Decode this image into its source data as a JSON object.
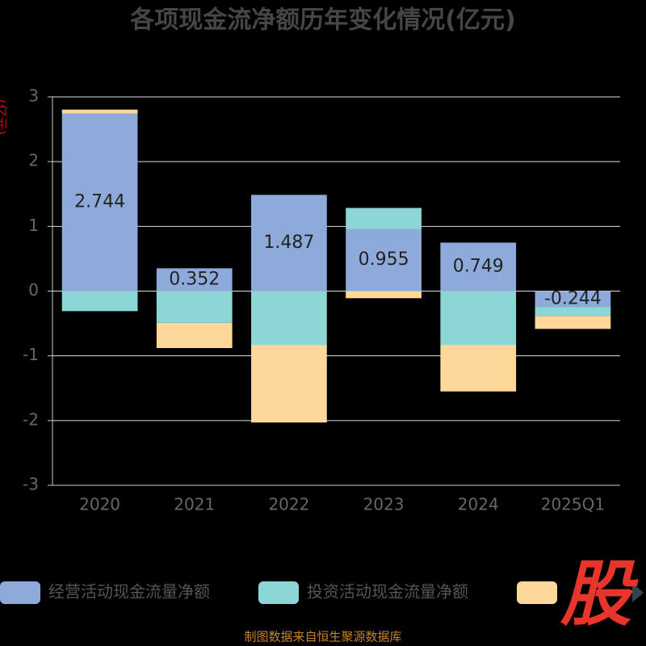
{
  "chart_data": {
    "type": "stacked_bar",
    "title": "各项现金流净额历年变化情况(亿元)",
    "y_axis_label": "(亿元)",
    "categories": [
      "2020",
      "2021",
      "2022",
      "2023",
      "2024",
      "2025Q1"
    ],
    "series": [
      {
        "name": "经营活动现金流量净额",
        "color": "#8eaadb",
        "values": [
          2.744,
          0.352,
          1.487,
          0.955,
          0.749,
          -0.244
        ],
        "labeled": true
      },
      {
        "name": "投资活动现金流量净额",
        "color": "#8dd6d6",
        "values": [
          -0.31,
          -0.49,
          -0.83,
          0.33,
          -0.83,
          -0.14
        ]
      },
      {
        "color": "#fed89a",
        "values": [
          0.06,
          -0.39,
          -1.2,
          -0.11,
          -0.72,
          -0.2
        ]
      }
    ],
    "ylim": [
      -3,
      3
    ],
    "yticks": [
      -3,
      -2,
      -1,
      0,
      1,
      2,
      3
    ],
    "grid": true,
    "logo": "股",
    "source": "制图数据来自恒生聚源数据库"
  }
}
